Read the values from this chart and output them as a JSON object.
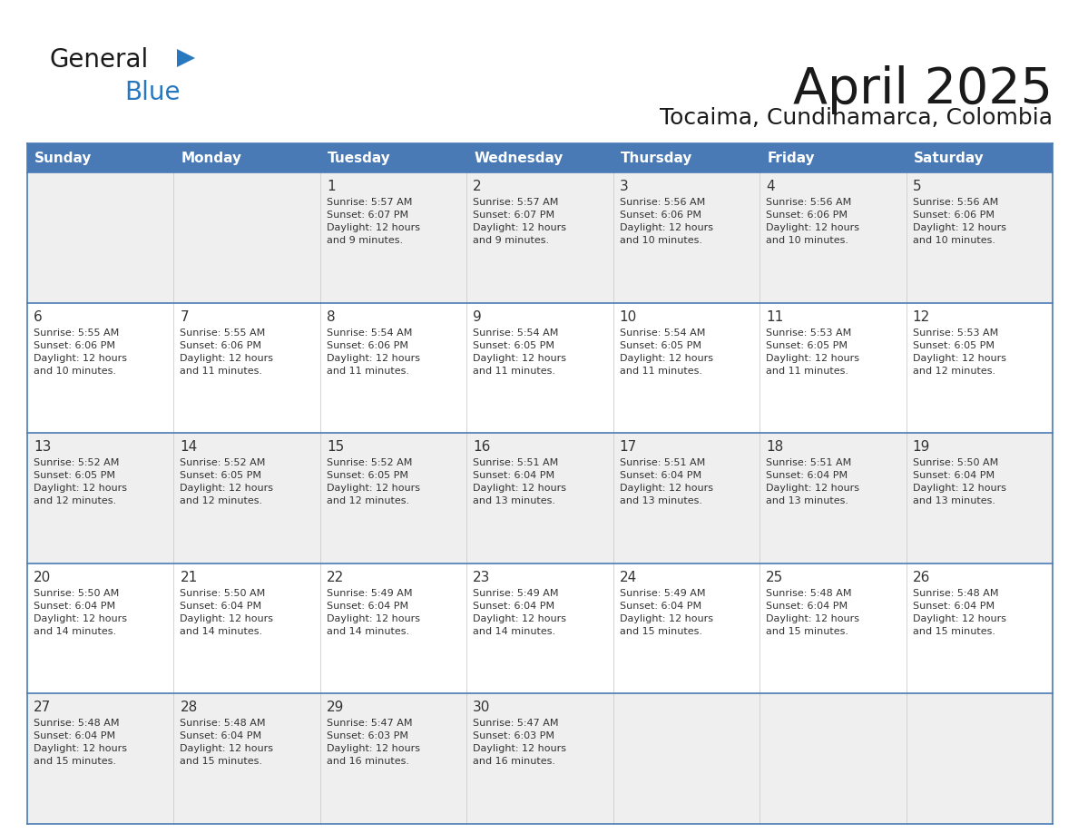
{
  "title": "April 2025",
  "subtitle": "Tocaima, Cundinamarca, Colombia",
  "header_bg": "#4a7ab5",
  "header_text_color": "#FFFFFF",
  "days_of_week": [
    "Sunday",
    "Monday",
    "Tuesday",
    "Wednesday",
    "Thursday",
    "Friday",
    "Saturday"
  ],
  "row_bg_odd": "#EFEFEF",
  "row_bg_even": "#FFFFFF",
  "cell_text_color": "#333333",
  "grid_line_color": "#4a7ab5",
  "logo_general_color": "#1a1a1a",
  "logo_blue_color": "#2878C0",
  "calendar": [
    [
      {
        "day": "",
        "info": ""
      },
      {
        "day": "",
        "info": ""
      },
      {
        "day": "1",
        "info": "Sunrise: 5:57 AM\nSunset: 6:07 PM\nDaylight: 12 hours\nand 9 minutes."
      },
      {
        "day": "2",
        "info": "Sunrise: 5:57 AM\nSunset: 6:07 PM\nDaylight: 12 hours\nand 9 minutes."
      },
      {
        "day": "3",
        "info": "Sunrise: 5:56 AM\nSunset: 6:06 PM\nDaylight: 12 hours\nand 10 minutes."
      },
      {
        "day": "4",
        "info": "Sunrise: 5:56 AM\nSunset: 6:06 PM\nDaylight: 12 hours\nand 10 minutes."
      },
      {
        "day": "5",
        "info": "Sunrise: 5:56 AM\nSunset: 6:06 PM\nDaylight: 12 hours\nand 10 minutes."
      }
    ],
    [
      {
        "day": "6",
        "info": "Sunrise: 5:55 AM\nSunset: 6:06 PM\nDaylight: 12 hours\nand 10 minutes."
      },
      {
        "day": "7",
        "info": "Sunrise: 5:55 AM\nSunset: 6:06 PM\nDaylight: 12 hours\nand 11 minutes."
      },
      {
        "day": "8",
        "info": "Sunrise: 5:54 AM\nSunset: 6:06 PM\nDaylight: 12 hours\nand 11 minutes."
      },
      {
        "day": "9",
        "info": "Sunrise: 5:54 AM\nSunset: 6:05 PM\nDaylight: 12 hours\nand 11 minutes."
      },
      {
        "day": "10",
        "info": "Sunrise: 5:54 AM\nSunset: 6:05 PM\nDaylight: 12 hours\nand 11 minutes."
      },
      {
        "day": "11",
        "info": "Sunrise: 5:53 AM\nSunset: 6:05 PM\nDaylight: 12 hours\nand 11 minutes."
      },
      {
        "day": "12",
        "info": "Sunrise: 5:53 AM\nSunset: 6:05 PM\nDaylight: 12 hours\nand 12 minutes."
      }
    ],
    [
      {
        "day": "13",
        "info": "Sunrise: 5:52 AM\nSunset: 6:05 PM\nDaylight: 12 hours\nand 12 minutes."
      },
      {
        "day": "14",
        "info": "Sunrise: 5:52 AM\nSunset: 6:05 PM\nDaylight: 12 hours\nand 12 minutes."
      },
      {
        "day": "15",
        "info": "Sunrise: 5:52 AM\nSunset: 6:05 PM\nDaylight: 12 hours\nand 12 minutes."
      },
      {
        "day": "16",
        "info": "Sunrise: 5:51 AM\nSunset: 6:04 PM\nDaylight: 12 hours\nand 13 minutes."
      },
      {
        "day": "17",
        "info": "Sunrise: 5:51 AM\nSunset: 6:04 PM\nDaylight: 12 hours\nand 13 minutes."
      },
      {
        "day": "18",
        "info": "Sunrise: 5:51 AM\nSunset: 6:04 PM\nDaylight: 12 hours\nand 13 minutes."
      },
      {
        "day": "19",
        "info": "Sunrise: 5:50 AM\nSunset: 6:04 PM\nDaylight: 12 hours\nand 13 minutes."
      }
    ],
    [
      {
        "day": "20",
        "info": "Sunrise: 5:50 AM\nSunset: 6:04 PM\nDaylight: 12 hours\nand 14 minutes."
      },
      {
        "day": "21",
        "info": "Sunrise: 5:50 AM\nSunset: 6:04 PM\nDaylight: 12 hours\nand 14 minutes."
      },
      {
        "day": "22",
        "info": "Sunrise: 5:49 AM\nSunset: 6:04 PM\nDaylight: 12 hours\nand 14 minutes."
      },
      {
        "day": "23",
        "info": "Sunrise: 5:49 AM\nSunset: 6:04 PM\nDaylight: 12 hours\nand 14 minutes."
      },
      {
        "day": "24",
        "info": "Sunrise: 5:49 AM\nSunset: 6:04 PM\nDaylight: 12 hours\nand 15 minutes."
      },
      {
        "day": "25",
        "info": "Sunrise: 5:48 AM\nSunset: 6:04 PM\nDaylight: 12 hours\nand 15 minutes."
      },
      {
        "day": "26",
        "info": "Sunrise: 5:48 AM\nSunset: 6:04 PM\nDaylight: 12 hours\nand 15 minutes."
      }
    ],
    [
      {
        "day": "27",
        "info": "Sunrise: 5:48 AM\nSunset: 6:04 PM\nDaylight: 12 hours\nand 15 minutes."
      },
      {
        "day": "28",
        "info": "Sunrise: 5:48 AM\nSunset: 6:04 PM\nDaylight: 12 hours\nand 15 minutes."
      },
      {
        "day": "29",
        "info": "Sunrise: 5:47 AM\nSunset: 6:03 PM\nDaylight: 12 hours\nand 16 minutes."
      },
      {
        "day": "30",
        "info": "Sunrise: 5:47 AM\nSunset: 6:03 PM\nDaylight: 12 hours\nand 16 minutes."
      },
      {
        "day": "",
        "info": ""
      },
      {
        "day": "",
        "info": ""
      },
      {
        "day": "",
        "info": ""
      }
    ]
  ]
}
